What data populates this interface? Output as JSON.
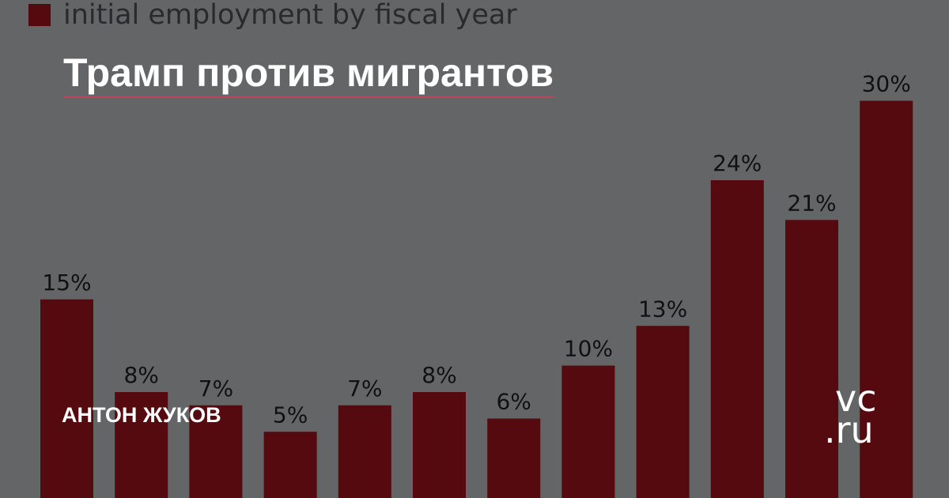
{
  "legend": {
    "label": "initial employment by fiscal year",
    "color": "#540a0e"
  },
  "headline": "Трамп против мигрантов",
  "author": "АНТОН ЖУКОВ",
  "logo": {
    "line1": "vc",
    "line2": ".ru"
  },
  "colors": {
    "background": "#646567",
    "bar": "#540a0e",
    "headline_underline": "#b8475a"
  },
  "chart_data": {
    "type": "bar",
    "series": [
      {
        "name": "initial employment by fiscal year",
        "values": [
          15,
          8,
          7,
          5,
          7,
          8,
          6,
          10,
          13,
          24,
          21,
          30
        ],
        "labels": [
          "15%",
          "8%",
          "7%",
          "5%",
          "7%",
          "8%",
          "6%",
          "10%",
          "13%",
          "24%",
          "21%",
          "30%"
        ]
      }
    ],
    "grid": false,
    "legend_position": "top-left"
  }
}
